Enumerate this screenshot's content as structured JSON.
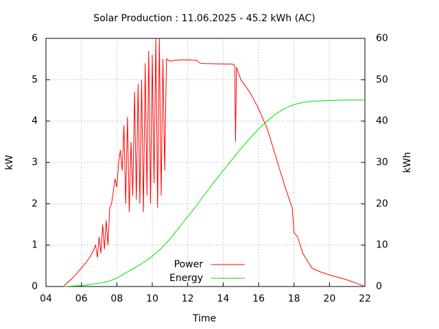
{
  "chart_data": {
    "type": "line",
    "title": "Solar Production : 11.06.2025 - 45.2 kWh (AC)",
    "xlabel": "Time",
    "ylabel": "kW",
    "y2label": "kWh",
    "xlim": [
      4,
      22
    ],
    "xticks": [
      {
        "value": 4,
        "label": "04"
      },
      {
        "value": 6,
        "label": "06"
      },
      {
        "value": 8,
        "label": "08"
      },
      10,
      12,
      14,
      16,
      18,
      20,
      22
    ],
    "ylim": [
      0,
      6
    ],
    "yticks": [
      0,
      1,
      2,
      3,
      4,
      5,
      6
    ],
    "y2lim": [
      0,
      60
    ],
    "y2ticks": [
      0,
      10,
      20,
      30,
      40,
      50,
      60
    ],
    "grid": true,
    "legend": "bottom",
    "series": [
      {
        "name": "Power",
        "color": "#ff0000",
        "x": [
          5.0,
          5.1,
          5.5,
          6.0,
          6.3,
          6.6,
          6.8,
          6.9,
          7.0,
          7.1,
          7.2,
          7.3,
          7.4,
          7.5,
          7.6,
          7.7,
          7.8,
          7.9,
          8.0,
          8.1,
          8.2,
          8.3,
          8.4,
          8.5,
          8.6,
          8.7,
          8.8,
          8.9,
          9.0,
          9.1,
          9.2,
          9.3,
          9.4,
          9.5,
          9.6,
          9.7,
          9.8,
          9.9,
          10.0,
          10.1,
          10.2,
          10.3,
          10.4,
          10.5,
          10.6,
          10.7,
          10.8,
          11.0,
          11.5,
          12.0,
          12.5,
          12.7,
          13.0,
          14.0,
          14.5,
          14.65,
          14.7,
          14.75,
          15.0,
          15.5,
          16.0,
          16.5,
          17.0,
          17.5,
          17.9,
          18.0,
          18.2,
          18.5,
          19.0,
          19.5,
          20.0,
          20.5,
          21.0,
          21.5,
          22.0
        ],
        "values": [
          0,
          0.05,
          0.2,
          0.45,
          0.6,
          0.8,
          1.0,
          0.7,
          1.2,
          0.8,
          1.5,
          0.9,
          1.6,
          1.0,
          1.9,
          2.0,
          2.3,
          2.6,
          2.4,
          3.0,
          3.3,
          2.8,
          3.9,
          2.0,
          4.1,
          1.8,
          3.5,
          2.2,
          4.7,
          2.1,
          4.9,
          2.0,
          5.0,
          1.8,
          5.4,
          2.2,
          5.7,
          2.0,
          5.6,
          2.5,
          6.0,
          1.9,
          6.0,
          2.2,
          5.5,
          2.8,
          5.5,
          5.45,
          5.48,
          5.48,
          5.47,
          5.4,
          5.39,
          5.38,
          5.38,
          5.35,
          3.5,
          5.3,
          5.0,
          4.7,
          4.3,
          3.8,
          3.1,
          2.4,
          1.9,
          1.3,
          1.2,
          0.8,
          0.45,
          0.35,
          0.28,
          0.22,
          0.16,
          0.08,
          0.0
        ]
      },
      {
        "name": "Energy",
        "color": "#00dd00",
        "axis": "y2",
        "x": [
          5.0,
          6.0,
          7.0,
          7.5,
          8.0,
          8.5,
          9.0,
          9.5,
          10.0,
          10.5,
          11.0,
          11.5,
          12.0,
          12.5,
          13.0,
          13.5,
          14.0,
          14.5,
          15.0,
          15.5,
          16.0,
          16.5,
          17.0,
          17.5,
          18.0,
          18.5,
          19.0,
          20.0,
          21.0,
          22.0
        ],
        "values": [
          0,
          0.2,
          0.8,
          1.2,
          2.0,
          3.3,
          4.5,
          5.8,
          7.3,
          9.2,
          11.5,
          14.2,
          16.9,
          19.6,
          22.5,
          25.3,
          28.0,
          30.7,
          33.3,
          35.8,
          38.1,
          40.1,
          41.8,
          43.1,
          44.0,
          44.5,
          44.8,
          45.0,
          45.1,
          45.1
        ]
      }
    ]
  }
}
